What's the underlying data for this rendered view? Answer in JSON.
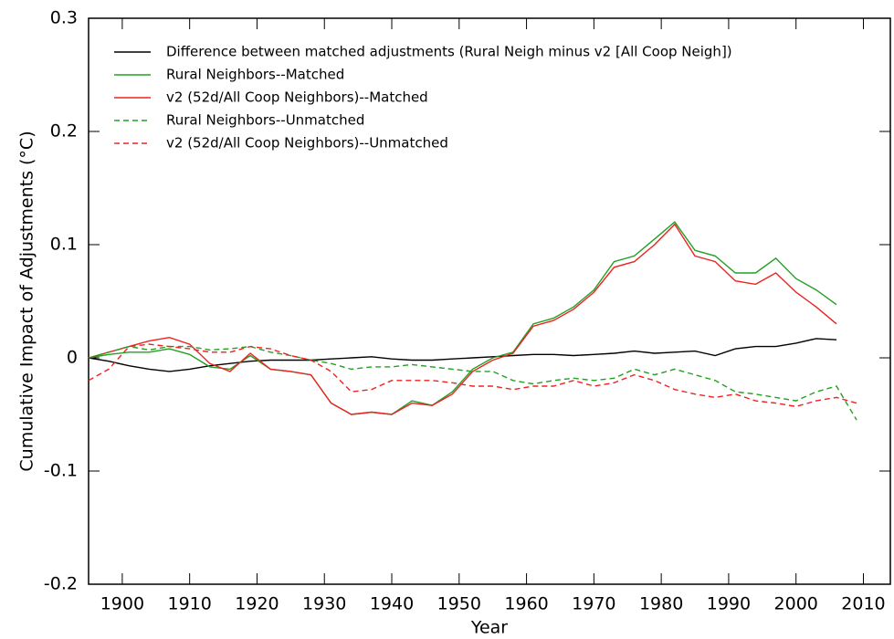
{
  "chart_data": {
    "type": "line",
    "ylabel": "Cumulative Impact of Adjustments (°C)",
    "xlabel": "Year",
    "xlim": [
      1895,
      2014
    ],
    "xticks": [
      1900,
      1910,
      1920,
      1930,
      1940,
      1950,
      1960,
      1970,
      1980,
      1990,
      2000,
      2010
    ],
    "ylim": [
      -0.2,
      0.3
    ],
    "yticks": [
      -0.2,
      -0.1,
      0,
      0.1,
      0.2,
      0.3
    ],
    "grid": false,
    "legend": "upper left",
    "x": [
      1895,
      1898,
      1901,
      1904,
      1907,
      1910,
      1913,
      1916,
      1919,
      1922,
      1925,
      1928,
      1931,
      1934,
      1937,
      1940,
      1943,
      1946,
      1949,
      1952,
      1955,
      1958,
      1961,
      1964,
      1967,
      1970,
      1973,
      1976,
      1979,
      1982,
      1985,
      1988,
      1991,
      1994,
      1997,
      2000,
      2003,
      2006,
      2009
    ],
    "series": [
      {
        "name": "Difference between matched adjustments (Rural Neigh minus v2 [All Coop Neigh])",
        "color": "#000000",
        "dash": false,
        "values": [
          0,
          -0.003,
          -0.007,
          -0.01,
          -0.012,
          -0.01,
          -0.007,
          -0.005,
          -0.003,
          -0.002,
          -0.002,
          -0.002,
          -0.001,
          0,
          0.001,
          -0.001,
          -0.002,
          -0.002,
          -0.001,
          0,
          0.001,
          0.002,
          0.003,
          0.003,
          0.002,
          0.003,
          0.004,
          0.006,
          0.004,
          0.005,
          0.006,
          0.002,
          0.008,
          0.01,
          0.01,
          0.013,
          0.017,
          0.016,
          null
        ]
      },
      {
        "name": "Rural Neighbors--Matched",
        "color": "#22a022",
        "dash": false,
        "values": [
          0,
          0.003,
          0.005,
          0.005,
          0.008,
          0.003,
          -0.008,
          -0.01,
          0.002,
          -0.01,
          -0.012,
          -0.015,
          -0.04,
          -0.05,
          -0.048,
          -0.05,
          -0.038,
          -0.042,
          -0.03,
          -0.01,
          0,
          0.005,
          0.03,
          0.035,
          0.045,
          0.06,
          0.085,
          0.09,
          0.105,
          0.12,
          0.095,
          0.09,
          0.075,
          0.075,
          0.088,
          0.07,
          0.06,
          0.047,
          null
        ]
      },
      {
        "name": "v2 (52d/All Coop Neighbors)--Matched",
        "color": "#ee2222",
        "dash": false,
        "values": [
          0,
          0.005,
          0.01,
          0.015,
          0.018,
          0.012,
          -0.005,
          -0.012,
          0.004,
          -0.01,
          -0.012,
          -0.015,
          -0.04,
          -0.05,
          -0.048,
          -0.05,
          -0.04,
          -0.042,
          -0.032,
          -0.012,
          -0.002,
          0.004,
          0.028,
          0.033,
          0.043,
          0.058,
          0.08,
          0.085,
          0.1,
          0.118,
          0.09,
          0.085,
          0.068,
          0.065,
          0.075,
          0.058,
          0.045,
          0.03,
          null
        ]
      },
      {
        "name": "Rural Neighbors--Unmatched",
        "color": "#22a022",
        "dash": true,
        "values": [
          0,
          0.005,
          0.01,
          0.007,
          0.01,
          0.01,
          0.007,
          0.008,
          0.01,
          0.005,
          0.002,
          -0.002,
          -0.005,
          -0.01,
          -0.008,
          -0.008,
          -0.006,
          -0.008,
          -0.01,
          -0.012,
          -0.012,
          -0.02,
          -0.023,
          -0.02,
          -0.018,
          -0.02,
          -0.018,
          -0.01,
          -0.015,
          -0.01,
          -0.015,
          -0.02,
          -0.03,
          -0.032,
          -0.035,
          -0.038,
          -0.03,
          -0.025,
          -0.055
        ]
      },
      {
        "name": "v2 (52d/All Coop Neighbors)--Unmatched",
        "color": "#ee2222",
        "dash": true,
        "values": [
          -0.02,
          -0.01,
          0.01,
          0.012,
          0.01,
          0.008,
          0.005,
          0.005,
          0.01,
          0.008,
          0.002,
          -0.002,
          -0.012,
          -0.03,
          -0.028,
          -0.02,
          -0.02,
          -0.02,
          -0.022,
          -0.025,
          -0.025,
          -0.028,
          -0.025,
          -0.025,
          -0.02,
          -0.025,
          -0.022,
          -0.015,
          -0.02,
          -0.028,
          -0.032,
          -0.035,
          -0.032,
          -0.038,
          -0.04,
          -0.043,
          -0.038,
          -0.035,
          -0.04
        ]
      }
    ]
  }
}
